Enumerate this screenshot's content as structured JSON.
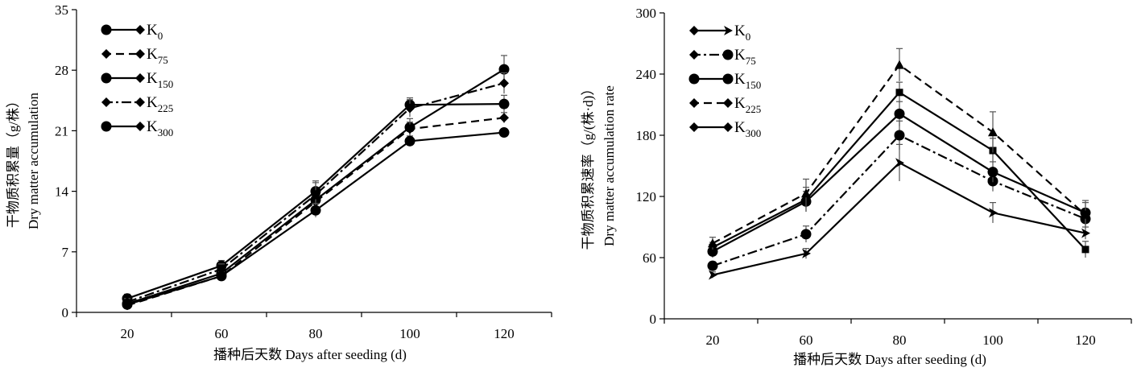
{
  "chart_data": [
    {
      "type": "line",
      "ylabel_cn": "干物质积累量（g/株）",
      "ylabel_en": "Dry matter accumulation",
      "xlabel": "播种后天数    Days after seeding (d)",
      "categories": [
        "20",
        "60",
        "80",
        "100",
        "120"
      ],
      "yticks": [
        "0",
        "7",
        "14",
        "21",
        "28",
        "35"
      ],
      "ylim": [
        0,
        35
      ],
      "legend_position": "top-left",
      "series": [
        {
          "name": "K0",
          "label_main": "K",
          "label_sub": "0",
          "values": [
            1.0,
            4.5,
            13.0,
            21.4,
            28.1
          ],
          "errors": [
            0.4,
            0.6,
            1.2,
            1.0,
            1.6
          ]
        },
        {
          "name": "K75",
          "label_main": "K",
          "label_sub": "75",
          "values": [
            0.8,
            4.2,
            12.8,
            21.2,
            22.5
          ],
          "errors": [
            0.4,
            0.5,
            1.0,
            0.8,
            0.6
          ]
        },
        {
          "name": "K150",
          "label_main": "K",
          "label_sub": "150",
          "values": [
            1.6,
            5.4,
            14.0,
            24.0,
            24.1
          ],
          "errors": [
            0.5,
            0.6,
            1.2,
            0.8,
            1.0
          ]
        },
        {
          "name": "K225",
          "label_main": "K",
          "label_sub": "225",
          "values": [
            1.2,
            5.0,
            13.6,
            23.6,
            26.5
          ],
          "errors": [
            0.4,
            0.6,
            1.4,
            1.0,
            1.2
          ]
        },
        {
          "name": "K300",
          "label_main": "K",
          "label_sub": "300",
          "values": [
            0.9,
            4.2,
            11.8,
            19.8,
            20.8
          ],
          "errors": [
            0.3,
            0.4,
            0.8,
            0.6,
            0.4
          ]
        }
      ]
    },
    {
      "type": "line",
      "ylabel_cn": "干物质积累速率（g/(株·d)）",
      "ylabel_en": "Dry matter accumulation rate",
      "xlabel": "播种后天数    Days after seeding (d)",
      "categories": [
        "20",
        "60",
        "80",
        "100",
        "120"
      ],
      "yticks": [
        "0",
        "60",
        "120",
        "180",
        "240",
        "300"
      ],
      "ylim": [
        0,
        300
      ],
      "legend_position": "top-left",
      "series": [
        {
          "name": "K0",
          "label_main": "K",
          "label_sub": "0",
          "values": [
            70,
            117,
            222,
            165,
            68
          ],
          "errors": [
            5,
            12,
            10,
            12,
            8
          ]
        },
        {
          "name": "K75",
          "label_main": "K",
          "label_sub": "75",
          "values": [
            52,
            83,
            180,
            135,
            98
          ],
          "errors": [
            4,
            8,
            14,
            10,
            10
          ]
        },
        {
          "name": "K150",
          "label_main": "K",
          "label_sub": "150",
          "values": [
            66,
            115,
            201,
            144,
            104
          ],
          "errors": [
            6,
            10,
            12,
            10,
            12
          ]
        },
        {
          "name": "K225",
          "label_main": "K",
          "label_sub": "225",
          "values": [
            74,
            123,
            249,
            183,
            102
          ],
          "errors": [
            6,
            14,
            16,
            20,
            12
          ]
        },
        {
          "name": "K300",
          "label_main": "K",
          "label_sub": "300",
          "values": [
            43,
            64,
            153,
            104,
            84
          ],
          "errors": [
            3,
            5,
            18,
            10,
            6
          ]
        }
      ]
    }
  ]
}
